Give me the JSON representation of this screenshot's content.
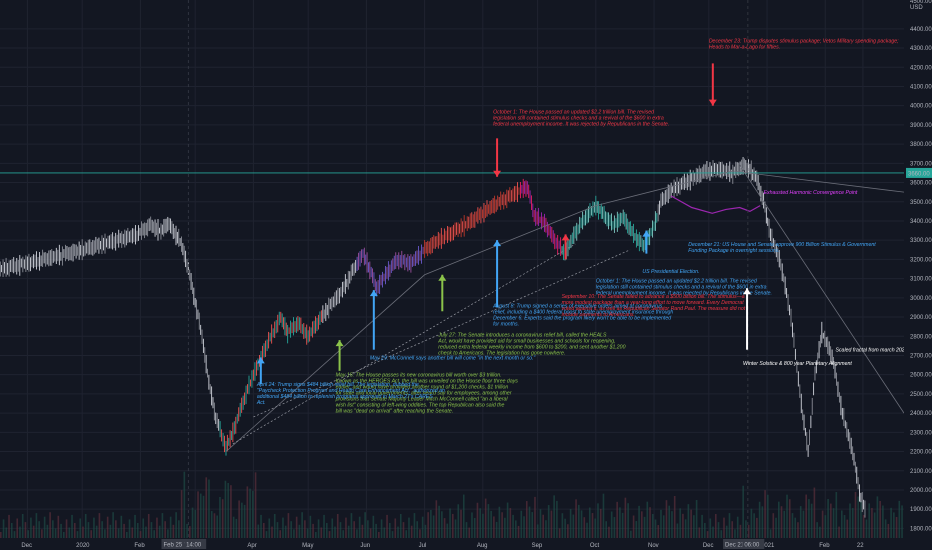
{
  "chart_data": {
    "type": "candlestick",
    "currency": "USD",
    "ylim": [
      1750,
      4550
    ],
    "y_ticks": [
      1800,
      1900,
      2000,
      2100,
      2200,
      2300,
      2400,
      2500,
      2600,
      2700,
      2800,
      2900,
      3000,
      3100,
      3200,
      3300,
      3400,
      3500,
      3600,
      3700,
      3800,
      3900,
      4000,
      4100,
      4200,
      4300,
      4400
    ],
    "top_price_partial": "4500.00",
    "current_price": "3660.00",
    "x_labels": [
      "Dec",
      "2020",
      "Feb",
      "Mar",
      "Apr",
      "May",
      "Jun",
      "Jul",
      "Aug",
      "Sep",
      "Oct",
      "Nov",
      "Dec",
      "2021",
      "Feb",
      "22"
    ],
    "x_label_values": [
      2019.92,
      2020.0,
      2020.085,
      2020.165,
      2020.25,
      2020.33,
      2020.415,
      2020.5,
      2020.585,
      2020.665,
      2020.75,
      2020.835,
      2020.915,
      2021.0,
      2021.085,
      2021.14
    ],
    "x_range": [
      2019.88,
      2021.2
    ],
    "crosshair_labels": [
      {
        "text": "Feb 25 '20",
        "x": 2020.145
      },
      {
        "text": "14:00",
        "x": 2020.165
      },
      {
        "text": "Dec 21 '20",
        "x": 2020.965
      },
      {
        "text": "06:00",
        "x": 2020.98
      }
    ],
    "price_path": [
      [
        2019.88,
        3150
      ],
      [
        2019.92,
        3180
      ],
      [
        2019.96,
        3215
      ],
      [
        2020.0,
        3250
      ],
      [
        2020.04,
        3290
      ],
      [
        2020.08,
        3330
      ],
      [
        2020.1,
        3380
      ],
      [
        2020.115,
        3345
      ],
      [
        2020.125,
        3390
      ],
      [
        2020.135,
        3340
      ],
      [
        2020.145,
        3280
      ],
      [
        2020.155,
        3150
      ],
      [
        2020.165,
        2980
      ],
      [
        2020.175,
        2800
      ],
      [
        2020.185,
        2560
      ],
      [
        2020.195,
        2380
      ],
      [
        2020.21,
        2220
      ],
      [
        2020.22,
        2300
      ],
      [
        2020.235,
        2460
      ],
      [
        2020.25,
        2600
      ],
      [
        2020.27,
        2760
      ],
      [
        2020.29,
        2900
      ],
      [
        2020.3,
        2820
      ],
      [
        2020.315,
        2870
      ],
      [
        2020.33,
        2800
      ],
      [
        2020.345,
        2880
      ],
      [
        2020.36,
        2950
      ],
      [
        2020.38,
        3040
      ],
      [
        2020.395,
        3140
      ],
      [
        2020.41,
        3230
      ],
      [
        2020.42,
        3150
      ],
      [
        2020.43,
        3050
      ],
      [
        2020.445,
        3130
      ],
      [
        2020.46,
        3200
      ],
      [
        2020.48,
        3180
      ],
      [
        2020.5,
        3250
      ],
      [
        2020.52,
        3300
      ],
      [
        2020.54,
        3340
      ],
      [
        2020.56,
        3380
      ],
      [
        2020.58,
        3430
      ],
      [
        2020.6,
        3480
      ],
      [
        2020.62,
        3520
      ],
      [
        2020.64,
        3560
      ],
      [
        2020.65,
        3580
      ],
      [
        2020.66,
        3430
      ],
      [
        2020.675,
        3390
      ],
      [
        2020.69,
        3300
      ],
      [
        2020.705,
        3230
      ],
      [
        2020.72,
        3340
      ],
      [
        2020.735,
        3420
      ],
      [
        2020.75,
        3480
      ],
      [
        2020.76,
        3440
      ],
      [
        2020.775,
        3380
      ],
      [
        2020.79,
        3420
      ],
      [
        2020.805,
        3330
      ],
      [
        2020.82,
        3270
      ],
      [
        2020.835,
        3370
      ],
      [
        2020.845,
        3500
      ],
      [
        2020.86,
        3560
      ],
      [
        2020.875,
        3590
      ],
      [
        2020.89,
        3620
      ],
      [
        2020.91,
        3660
      ],
      [
        2020.93,
        3670
      ],
      [
        2020.95,
        3650
      ],
      [
        2020.965,
        3690
      ],
      [
        2020.975,
        3670
      ],
      [
        2020.985,
        3620
      ],
      [
        2020.995,
        3500
      ],
      [
        2021.005,
        3330
      ],
      [
        2021.02,
        3180
      ],
      [
        2021.035,
        2900
      ],
      [
        2021.05,
        2450
      ],
      [
        2021.06,
        2200
      ],
      [
        2021.07,
        2600
      ],
      [
        2021.08,
        2820
      ],
      [
        2021.095,
        2700
      ],
      [
        2021.11,
        2400
      ],
      [
        2021.125,
        2200
      ],
      [
        2021.135,
        1990
      ],
      [
        2021.145,
        1870
      ]
    ],
    "purple_path": [
      [
        2020.86,
        3530
      ],
      [
        2020.89,
        3470
      ],
      [
        2020.92,
        3440
      ],
      [
        2020.94,
        3460
      ],
      [
        2020.96,
        3470
      ],
      [
        2020.975,
        3450
      ],
      [
        2020.99,
        3480
      ]
    ],
    "lines": [
      {
        "color": "#26a69a",
        "points": [
          [
            2019.88,
            3650
          ],
          [
            2021.2,
            3650
          ]
        ]
      },
      {
        "color": "#6a6d78",
        "points": [
          [
            2020.21,
            2200
          ],
          [
            2020.5,
            3120
          ],
          [
            2020.75,
            3480
          ],
          [
            2020.95,
            3660
          ],
          [
            2021.2,
            3550
          ]
        ]
      },
      {
        "color": "#6a6d78",
        "points": [
          [
            2020.96,
            3690
          ],
          [
            2021.2,
            2400
          ]
        ]
      }
    ],
    "annotations": [
      {
        "text": "December 23: Trump disputes stimulus package; Vetos Military spending package; Heads to Mar-a-Lago for fifties.",
        "color": "#f23645",
        "x": 2020.915,
        "y": 4330,
        "arrow_from": 4220,
        "arrow_to": 4000
      },
      {
        "text": "October 1: The House passed an updated $2.2 trillion bill. The revised legislation still contained stimulus checks and a revival of the $600 in extra federal unemployment income. It was rejected by Republicans in the Senate.",
        "color": "#f23645",
        "x": 2020.6,
        "y": 3960,
        "arrow_from": 3830,
        "arrow_to": 3630
      },
      {
        "text": "Exhausted Harmonic Convergence Point",
        "color": "#e040fb",
        "x": 2020.995,
        "y": 3540
      },
      {
        "text": "December 21: US House and Senate approve 900 Billion Stimulus & Government Funding Package in overnight sessions.",
        "color": "#42a5f5",
        "x": 2020.885,
        "y": 3270
      },
      {
        "text": "US Presidential Election.",
        "color": "#42a5f5",
        "x": 2020.818,
        "y": 3130,
        "arrow_from": 3230,
        "arrow_to": 3350
      },
      {
        "text": "October 1: The House passed an updated $2.2 trillion bill. The revised legislation still contained stimulus checks and a revival of the $600 in extra federal unemployment income. It was rejected by Republicans in the Senate.",
        "color": "#42a5f5",
        "x": 2020.75,
        "y": 3080
      },
      {
        "text": "September 10: The Senate failed to advance a $500 billion bill. The stimulus—a more modest package than a year-long effort to move forward. Every Democrat voted against it, as well as Republican Senator Rand Paul. The measure did not include payments to Americans.",
        "color": "#f23645",
        "x": 2020.7,
        "y": 3000,
        "arrow_from": 3200,
        "arrow_to": 3330
      },
      {
        "text": "August 8: Trump signed a series of executive orders aimed at coronavirus relief, including a $400 federal boost to state unemployment insurance through December 6. Experts said the program likely won't be able to be implemented for months.",
        "color": "#42a5f5",
        "x": 2020.6,
        "y": 2950,
        "arrow_from": 2950,
        "arrow_to": 3300
      },
      {
        "text": "July 27: The Senate introduces a coronavirus relief bill, called the HEALS Act, would have provided aid for small businesses and schools for reopening, reduced extra federal weekly income from $600 to $200, and sent another $1,200 check to Americans. The legislation has gone nowhere.",
        "color": "#8bc34a",
        "x": 2020.52,
        "y": 2800,
        "arrow_from": 2930,
        "arrow_to": 3120
      },
      {
        "text": "May 29: McConnell says another bill will come \"in the next month or so.\"",
        "color": "#42a5f5",
        "x": 2020.42,
        "y": 2680,
        "arrow_from": 2730,
        "arrow_to": 3040
      },
      {
        "text": "May 15: The House passes its new coronavirus bill worth over $3 trillion. Known as the HEROES Act, the bill was unveiled on the House floor three days earlier, and would have provided another round of $1,200 checks, $1 trillion for state and local governments, after heard say for employees, among other provisions that Senate Majority Leader Mitch McConnell called \"an a liberal wish list\" consisting of left-wing oddities. The top Republican also said the bill was \"dead on arrival\" after reaching the Senate.",
        "color": "#8bc34a",
        "x": 2020.37,
        "y": 2590,
        "arrow_from": 2620,
        "arrow_to": 2780
      },
      {
        "text": "April 24: Trump signs $484 billion relief bill. The legislation, dubbed the \"Paycheck Protection Program and Health Care Enhancement Act,\" authorized an additional $484 billion to replenish programs approved in March 27's CARES Act.",
        "color": "#42a5f5",
        "x": 2020.255,
        "y": 2540,
        "arrow_from": 2550,
        "arrow_to": 2690
      },
      {
        "text": "Winter Solstice & 800 year Planetary Alignment",
        "color": "#ffffff",
        "x": 2020.965,
        "y": 2650,
        "arrow_from": 2730,
        "arrow_to": 3050
      },
      {
        "text": "Scaled fractal from march 2020",
        "color": "#ffffff",
        "x": 2021.1,
        "y": 2720
      }
    ]
  }
}
